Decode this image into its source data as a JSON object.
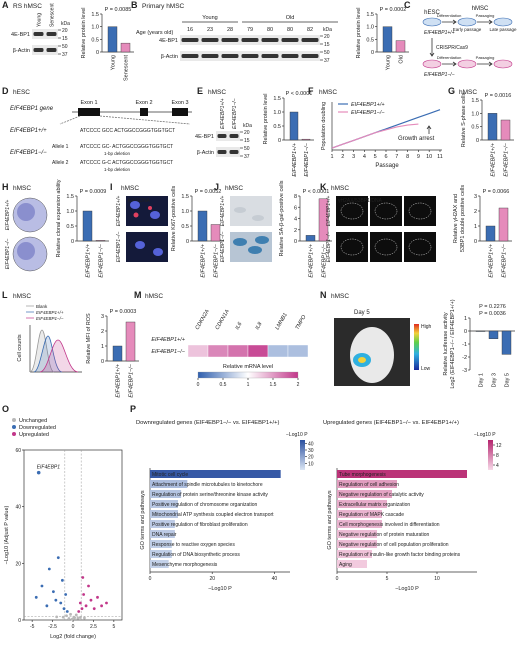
{
  "panels": {
    "A": {
      "letter": "A",
      "title": "RS hMSC",
      "blot": {
        "lanes": [
          "Young",
          "Senescent"
        ],
        "rows": [
          "4E-BP1",
          "β-Actin"
        ],
        "unit": "kDa",
        "markers": [
          20,
          15,
          50,
          37
        ]
      },
      "bars": {
        "ylabel": "Relative protein level",
        "categories": [
          "Young",
          "Senescent"
        ],
        "values": [
          1,
          0.35
        ],
        "colors": [
          "#3b6db3",
          "#e58bbb"
        ],
        "ylim": [
          0,
          1.5
        ],
        "yticks": [
          0,
          0.5,
          {
            "value": 1,
            "label": "1.0"
          },
          1.5
        ],
        "pvalues": [
          "P = 0.0085"
        ]
      }
    },
    "B": {
      "letter": "B",
      "title": "Primary hMSC",
      "age_label": "Age (years old)",
      "groups": [
        "Young",
        "Old"
      ],
      "blot": {
        "lanes": [
          16,
          23,
          28,
          79,
          80,
          80,
          82
        ],
        "rows": [
          "4E-BP1",
          "β-Actin"
        ],
        "unit": "kDa",
        "markers": [
          20,
          15,
          50,
          37
        ]
      },
      "bars": {
        "ylabel": "Relative protein level",
        "categories": [
          "Young",
          "Old"
        ],
        "values": [
          1,
          0.45
        ],
        "colors": [
          "#3b6db3",
          "#e58bbb"
        ],
        "ylim": [
          0,
          1.5
        ],
        "yticks": [
          0,
          0.5,
          {
            "value": 1,
            "label": "1.0"
          },
          1.5
        ],
        "pvalues": [
          "P = 0.0002"
        ]
      }
    },
    "C": {
      "letter": "C",
      "hesc": "hESC",
      "hmsc": "hMSC",
      "wt": "EIF4EBP1+/+",
      "ko": "EIF4EBP1−/−",
      "diff": "Differentiation",
      "early": "Early passage",
      "late": "Late passage",
      "pass": "Passaging",
      "crispr": "CRISPR/Cas9"
    },
    "D": {
      "letter": "D",
      "title": "hESC",
      "gene": "EIF4EBP1 gene",
      "exons": [
        "Exon 1",
        "Exon 2",
        "Exon 3"
      ],
      "wt": "EIF4EBP1+/+",
      "ko": "EIF4EBP1−/−",
      "wt_seq": "ATCCCC GCC ACTGGCCGGGTGGTGCT",
      "alleles": [
        {
          "name": "Allele 1",
          "seq": "ATCCCC GC- ACTGGCCGGGTGGTGCT",
          "note": "1-bp deletion"
        },
        {
          "name": "Allele 2",
          "seq": "ATCCCC G-C ACTGGCCGGGTGGTGCT",
          "note": "1-bp deletion"
        }
      ]
    },
    "E": {
      "letter": "E",
      "title": "hMSC",
      "blot": {
        "lanes": [
          "EIF4EBP1+/+",
          "EIF4EBP1−/−"
        ],
        "rows": [
          "4E-BP1",
          "β-Actin"
        ],
        "unit": "kDa",
        "markers": [
          20,
          15,
          50,
          37
        ]
      },
      "bars": {
        "italic": true,
        "ylabel": "Relative protein level",
        "categories": [
          "EIF4EBP1+/+",
          "EIF4EBP1−/−"
        ],
        "values": [
          1,
          0.03
        ],
        "colors": [
          "#3b6db3",
          "#e58bbb"
        ],
        "ylim": [
          0,
          1.5
        ],
        "yticks": [
          0,
          0.5,
          {
            "value": 1,
            "label": "1.0"
          },
          1.5
        ],
        "pvalues": [
          "P < 0.0001"
        ]
      }
    },
    "F": {
      "letter": "F",
      "title": "hMSC",
      "chart": {
        "type": "line",
        "ylabel": "Population doubling",
        "xlabel": "Passage",
        "x": [
          1,
          2,
          3,
          4,
          5,
          6,
          7,
          8,
          9,
          10,
          11
        ],
        "xlim": [
          1,
          11
        ],
        "xticks": [
          1,
          2,
          3,
          4,
          5,
          6,
          7,
          8,
          9,
          10,
          11
        ],
        "ylim": [
          0,
          25
        ],
        "series": [
          {
            "name": "EIF4EBP1+/+",
            "color": "#3b6db3",
            "values": [
              1,
              3,
              5,
              7,
              9,
              11,
              13,
              15,
              17,
              19,
              21
            ]
          },
          {
            "name": "EIF4EBP1−/−",
            "color": "#e58bbb",
            "values": [
              1,
              3,
              5,
              7,
              9,
              10.5,
              12,
              13,
              13.5,
              null,
              null
            ]
          }
        ],
        "annotation": "Growth arrest"
      }
    },
    "G": {
      "letter": "G",
      "title": "hMSC",
      "bars": {
        "italic": true,
        "ylabel": "Relative S-phase cells",
        "categories": [
          "EIF4EBP1+/+",
          "EIF4EBP1−/−"
        ],
        "values": [
          1,
          0.75
        ],
        "colors": [
          "#3b6db3",
          "#e58bbb"
        ],
        "ylim": [
          0,
          1.5
        ],
        "yticks": [
          0,
          0.5,
          {
            "value": 1,
            "label": "1.0"
          },
          1.5
        ],
        "pvalues": [
          "P = 0.0016"
        ]
      }
    },
    "H": {
      "letter": "H",
      "title": "hMSC",
      "rows": [
        "EIF4EBP1+/+",
        "EIF4EBP1−/−"
      ],
      "bars": {
        "italic": true,
        "ylabel": "Relative clonal expansion ability",
        "categories": [
          "EIF4EBP1+/+",
          "EIF4EBP1−/−"
        ],
        "values": [
          1,
          0.02
        ],
        "colors": [
          "#3b6db3",
          "#e58bbb"
        ],
        "ylim": [
          0,
          1.5
        ],
        "yticks": [
          0,
          0.5,
          {
            "value": 1,
            "label": "1.0"
          },
          1.5
        ],
        "pvalues": [
          "P = 0.0009"
        ]
      }
    },
    "I": {
      "letter": "I",
      "title": "hMSC",
      "stain": "Ki67/DNA",
      "rows": [
        "EIF4EBP1+/+",
        "EIF4EBP1−/−"
      ],
      "bars": {
        "italic": true,
        "ylabel": "Relative Ki67-positive cells",
        "categories": [
          "EIF4EBP1+/+",
          "EIF4EBP1−/−"
        ],
        "values": [
          1,
          0.55
        ],
        "colors": [
          "#3b6db3",
          "#e58bbb"
        ],
        "ylim": [
          0,
          1.5
        ],
        "yticks": [
          0,
          0.5,
          {
            "value": 1,
            "label": "1.0"
          },
          1.5
        ],
        "pvalues": [
          "P = 0.0052"
        ]
      }
    },
    "J": {
      "letter": "J",
      "title": "hMSC",
      "rows": [
        "EIF4EBP1+/+",
        "EIF4EBP1−/−"
      ],
      "bars": {
        "italic": true,
        "ylabel": "Relative SA-β-gal-positive cells",
        "categories": [
          "EIF4EBP1+/+",
          "EIF4EBP1−/−"
        ],
        "values": [
          1,
          7.5
        ],
        "colors": [
          "#3b6db3",
          "#e58bbb"
        ],
        "ylim": [
          0,
          8
        ],
        "yticks": [
          0,
          2,
          4,
          6,
          8
        ],
        "pvalues": [
          "P < 0.0001"
        ]
      }
    },
    "K": {
      "letter": "K",
      "title": "hMSC",
      "stain": "γH2AX/53BP1/DNA",
      "rows": [
        "EIF4EBP1+/+",
        "EIF4EBP1−/−"
      ],
      "bars": {
        "italic": true,
        "ylabel": "Relative γH2AX and",
        "ylabel2": "53BP1 double positive cells",
        "categories": [
          "EIF4EBP1+/+",
          "EIF4EBP1−/−"
        ],
        "values": [
          1,
          2.2
        ],
        "colors": [
          "#3b6db3",
          "#e58bbb"
        ],
        "ylim": [
          0,
          3
        ],
        "yticks": [
          0,
          1,
          2,
          3
        ],
        "pvalues": [
          "P = 0.0066"
        ]
      }
    },
    "L": {
      "letter": "L",
      "title": "hMSC",
      "legend": [
        "Blank",
        "EIF4EBP1+/+",
        "EIF4EBP1−/−"
      ],
      "hist_ylabel": "Cell counts",
      "bars": {
        "italic": true,
        "ylabel": "Relative MFI of ROS",
        "categories": [
          "EIF4EBP1+/+",
          "EIF4EBP1−/−"
        ],
        "values": [
          1,
          2.6
        ],
        "colors": [
          "#3b6db3",
          "#e58bbb"
        ],
        "ylim": [
          0,
          3
        ],
        "yticks": [
          0,
          1,
          2,
          3
        ],
        "pvalues": [
          "P = 0.0003"
        ]
      }
    },
    "M": {
      "letter": "M",
      "title": "hMSC",
      "heatmap": {
        "genes": [
          "CDKN2A",
          "CDKN1A",
          "IL6",
          "IL8",
          "LMNB1",
          "TMPO"
        ],
        "rows": [
          "EIF4EBP1+/+",
          "EIF4EBP1−/−"
        ],
        "values": [
          [
            1,
            1,
            1,
            1,
            1,
            1
          ],
          [
            1.3,
            1.6,
            1.7,
            1.9,
            0.6,
            0.6
          ]
        ],
        "clabel": "Relative mRNA level",
        "clim": [
          0,
          2
        ],
        "cticks": [
          0,
          0.5,
          1,
          1.5,
          2
        ],
        "cmap": [
          "#2f5fae",
          "#ffffff",
          "#c2378a"
        ]
      }
    },
    "N": {
      "letter": "N",
      "title": "hMSC",
      "day": "Day 5",
      "high": "High",
      "low": "Low",
      "bars": {
        "ylabel": "Relative luciferase activity",
        "ylabel2": "Log2 (EIF4EBP1−/− / EIF4EBP1+/+)",
        "categories": [
          "Day 1",
          "Day 3",
          "Day 5"
        ],
        "values": [
          0,
          -0.6,
          -1.8
        ],
        "colors": [
          "#3b6db3",
          "#3b6db3",
          "#3b6db3"
        ],
        "ylim": [
          -3,
          1
        ],
        "yticks": [
          1,
          0,
          -1,
          -2,
          -3
        ],
        "pvalues": [
          "P = 0.0036",
          "P = 0.2276"
        ]
      }
    },
    "O": {
      "letter": "O",
      "volcano": {
        "xlabel": "Log2 (fold change)",
        "ylabel": "−Log10 (Adjust P value)",
        "xlim": [
          -6,
          6
        ],
        "xticks": [
          -5,
          -2.5,
          0,
          2.5,
          5
        ],
        "ylim": [
          0,
          60
        ],
        "yticks": [
          0,
          20,
          40,
          60
        ],
        "series": [
          {
            "name": "Unchanged",
            "color": "#b8b8b8",
            "x": [
              -1.2,
              -0.8,
              -0.5,
              -0.3,
              -0.1,
              0.1,
              0.2,
              0.4,
              0.6,
              0.9,
              1.4,
              -2
            ],
            "y": [
              1,
              1.5,
              0.5,
              2,
              0.3,
              1,
              0.8,
              1.8,
              0.6,
              0.9,
              0.7,
              1.1
            ]
          },
          {
            "name": "Downregulated",
            "color": "#3b6db3",
            "x": [
              -4.5,
              -3.8,
              -3.2,
              -2.9,
              -2.4,
              -2.1,
              -1.8,
              -1.5,
              -1.3,
              -1.1,
              -0.9,
              -0.7
            ],
            "y": [
              8,
              12,
              5,
              18,
              10,
              7,
              22,
              6,
              14,
              4,
              9,
              3
            ]
          },
          {
            "name": "Upregulated",
            "color": "#c2378a",
            "x": [
              0.7,
              0.9,
              1.1,
              1.3,
              1.6,
              1.9,
              2.2,
              2.6,
              3,
              3.5,
              4.1,
              1.2
            ],
            "y": [
              3,
              6,
              4,
              9,
              5,
              12,
              7,
              4,
              8,
              5,
              6,
              15
            ]
          }
        ],
        "highlight": {
          "label": "EIF4EBP1",
          "x": -4.2,
          "y": 52
        }
      }
    },
    "P": {
      "letter": "P",
      "charts": [
        {
          "title": "Downregulated genes (EIF4EBP1−/− vs. EIF4EBP1+/+)",
          "ylabel": "GO terms and pathways",
          "xlabel": "−Log10 P",
          "clabel": "−Log10 P",
          "xlim": [
            0,
            45
          ],
          "xticks": [
            0,
            20,
            40
          ],
          "clim": [
            0,
            45
          ],
          "cticks": [
            10,
            20,
            30,
            40
          ],
          "cmap": [
            "#dbe5f4",
            "#2a4fa0"
          ],
          "terms": [
            "Mitotic cell cycle",
            "Attachment of spindle microtubules to kinetochore",
            "Regulation of protein serine/threonine kinase activity",
            "Positive regulation of chromosome organization",
            "Mitochondrial ATP synthesis coupled electron transport",
            "Positive regulation of fibroblast proliferation",
            "DNA repair",
            "Response to reactive oxygen species",
            "Regulation of DNA biosynthetic process",
            "Mesenchyme morphogenesis"
          ],
          "values": [
            42,
            12,
            10,
            9,
            9,
            8,
            8,
            7,
            7,
            6
          ]
        },
        {
          "title": "Upregulated genes (EIF4EBP1−/− vs. EIF4EBP1+/+)",
          "ylabel": "GO terms and pathways",
          "xlabel": "−Log10 P",
          "clabel": "−Log10 P",
          "xlim": [
            0,
            14
          ],
          "xticks": [
            0,
            5,
            10
          ],
          "clim": [
            2,
            14
          ],
          "cticks": [
            4,
            8,
            12
          ],
          "cmap": [
            "#f7d9e8",
            "#b5246e"
          ],
          "terms": [
            "Tube morphogenesis",
            "Regulation of cell adhesion",
            "Negative regulation of catalytic activity",
            "Extracellular matrix organization",
            "Regulation of MAPK cascade",
            "Cell morphogenesis involved in differentiation",
            "Negative regulation of protein maturation",
            "Negative regulation of cell population proliferation",
            "Regulation of insulin-like growth factor binding proteins",
            "Aging"
          ],
          "values": [
            13,
            6,
            5.5,
            5,
            4.5,
            4.5,
            4,
            4,
            3.5,
            3
          ]
        }
      ]
    }
  }
}
